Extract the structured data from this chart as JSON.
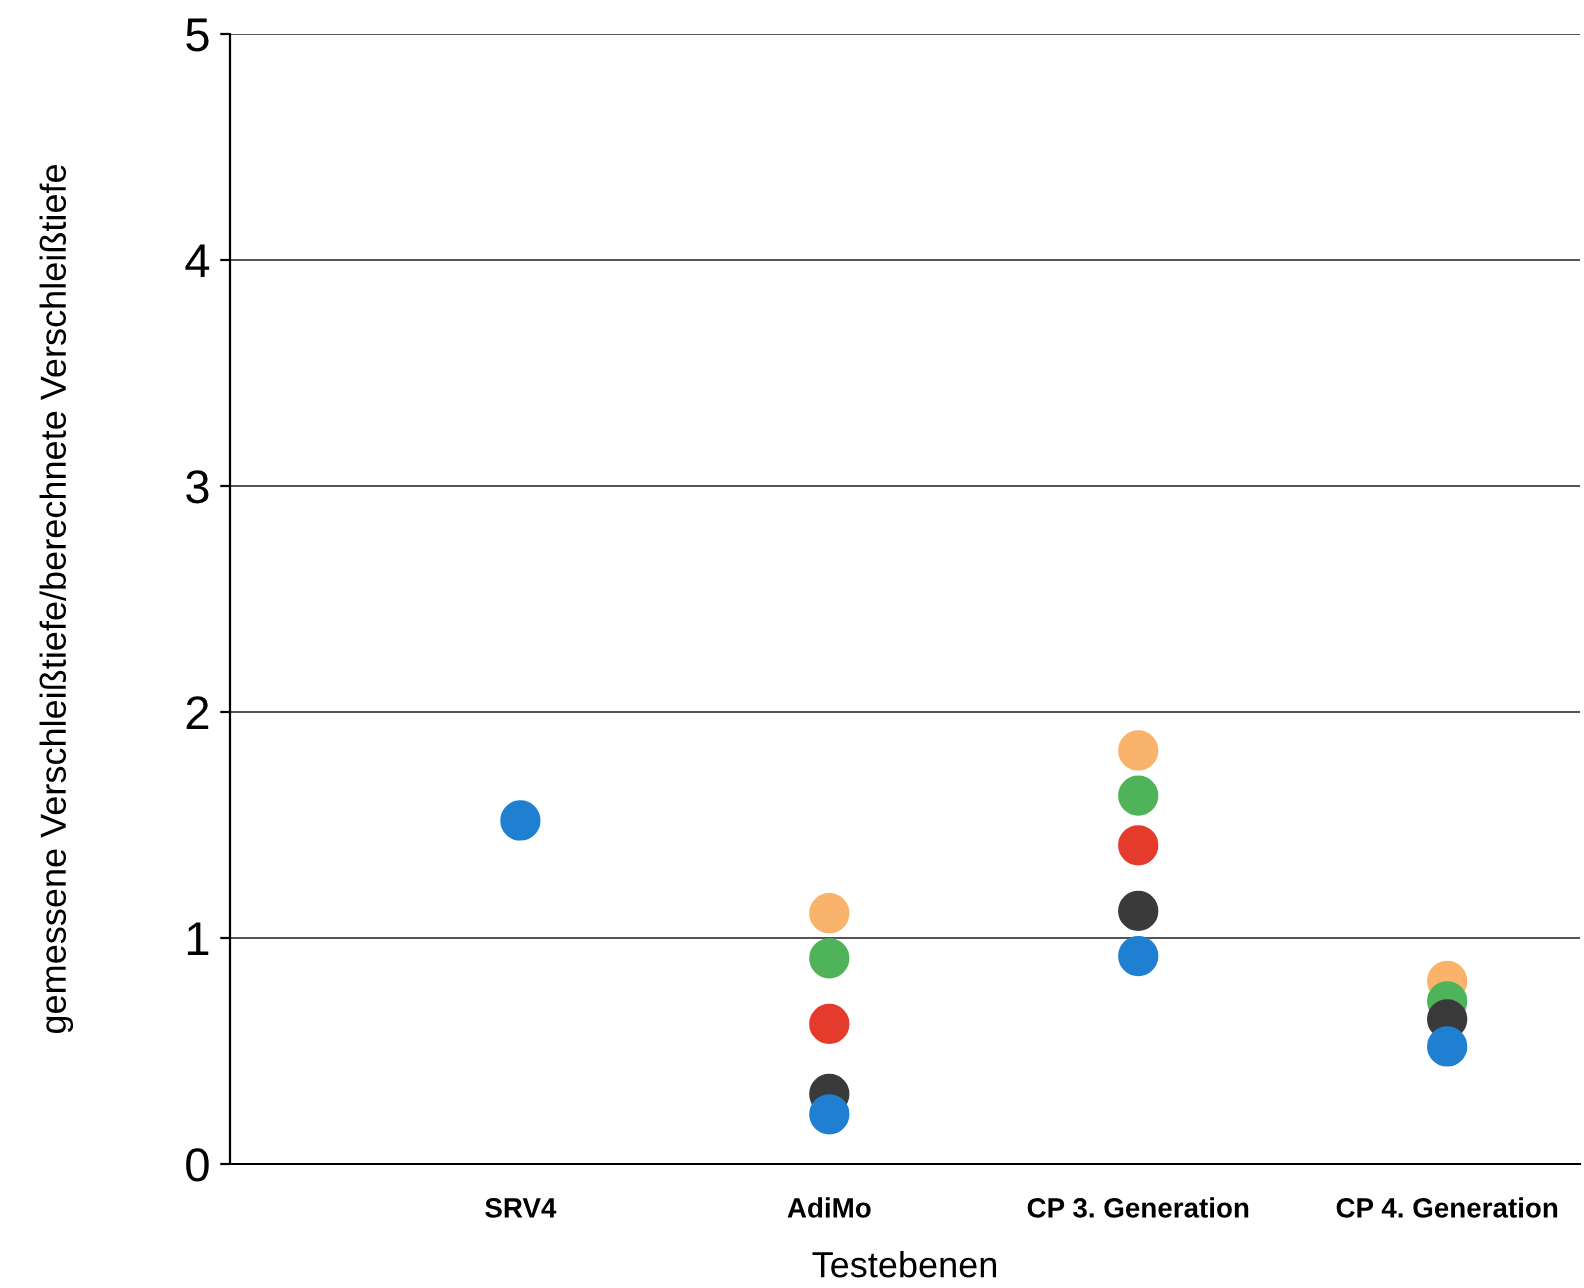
{
  "chart_data": {
    "type": "scatter",
    "xlabel": "Testebenen",
    "ylabel": "gemessene Verschleißtiefe/berechnete Verschleißtiefe",
    "categories": [
      "SRV4",
      "AdiMo",
      "CP 3. Generation",
      "CP 4. Generation"
    ],
    "series": [
      {
        "color": "#f9b36b",
        "values": [
          null,
          1.11,
          1.83,
          0.81
        ]
      },
      {
        "color": "#4fb35a",
        "values": [
          null,
          0.91,
          1.63,
          0.72
        ]
      },
      {
        "color": "#e53b2c",
        "values": [
          null,
          0.62,
          1.41,
          null
        ]
      },
      {
        "color": "#3a3a3a",
        "values": [
          null,
          0.31,
          1.12,
          0.64
        ]
      },
      {
        "color": "#1f7fd0",
        "values": [
          1.52,
          0.22,
          0.92,
          0.52
        ]
      }
    ],
    "ylim": [
      0,
      5
    ],
    "yticks": [
      0,
      1,
      2,
      3,
      4,
      5
    ],
    "grid": "y",
    "marker": "circle",
    "legend": false
  }
}
